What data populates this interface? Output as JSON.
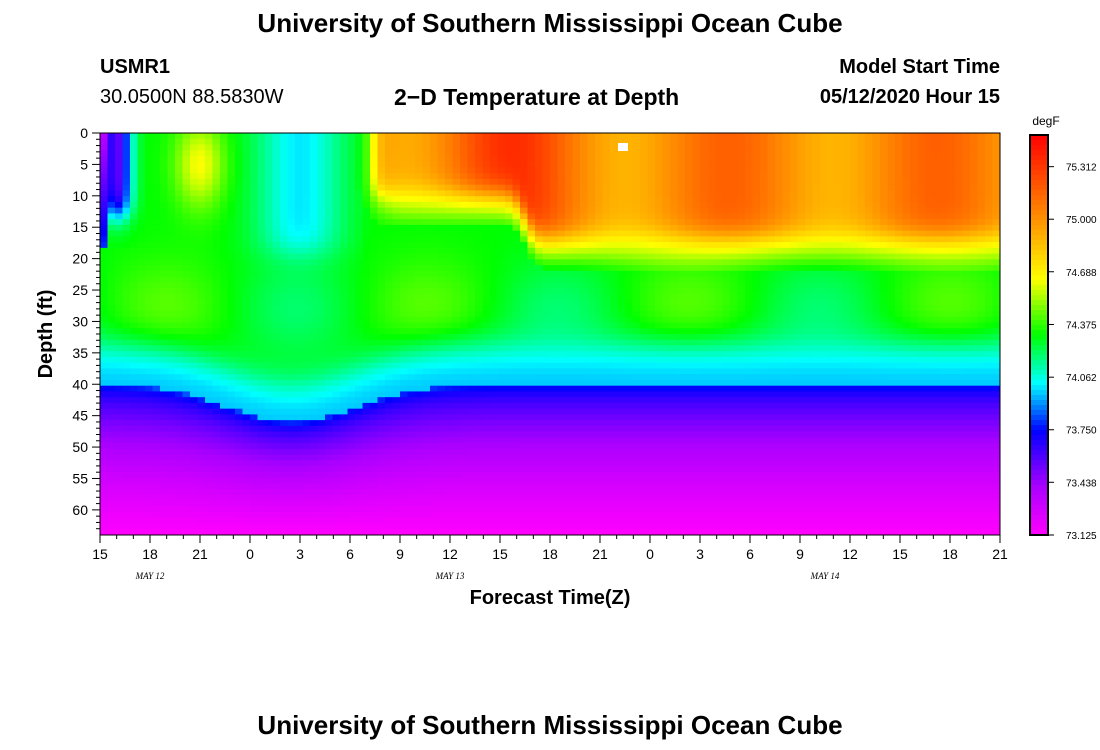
{
  "header": {
    "title": "University of Southern Mississippi Ocean Cube",
    "station_id": "USMR1",
    "station_coords": "30.0500N 88.5830W",
    "plot_title": "2−D Temperature at Depth",
    "model_start_label": "Model Start Time",
    "model_start_value": "05/12/2020 Hour 15"
  },
  "footer": {
    "title": "University of Southern Mississippi Ocean Cube"
  },
  "chart_data": {
    "type": "heatmap",
    "ylabel": "Depth (ft)",
    "xlabel": "Forecast Time(Z)",
    "y_ticks": [
      0,
      5,
      10,
      15,
      20,
      25,
      30,
      35,
      40,
      45,
      50,
      55,
      60
    ],
    "ylim": [
      0,
      64
    ],
    "x_tick_labels": [
      "15",
      "18",
      "21",
      "0",
      "3",
      "6",
      "9",
      "12",
      "15",
      "18",
      "21",
      "0",
      "3",
      "6",
      "9",
      "12",
      "15",
      "18",
      "21"
    ],
    "x_hours_since_start_range": [
      0,
      54
    ],
    "date_labels": [
      {
        "label": "MAY 12",
        "hour": 3
      },
      {
        "label": "MAY 13",
        "hour": 21
      },
      {
        "label": "MAY 14",
        "hour": 43.5
      }
    ],
    "colorbar": {
      "unit": "degF",
      "min": 73.125,
      "max": 75.5,
      "ticks": [
        "73.125",
        "73.438",
        "73.750",
        "74.062",
        "74.375",
        "74.688",
        "75.000",
        "75.312"
      ]
    },
    "colors": [
      "#ff00ff",
      "#aa00ff",
      "#0000ff",
      "#00ffff",
      "#00ff00",
      "#ffff00",
      "#ff9900",
      "#ff0000"
    ]
  }
}
